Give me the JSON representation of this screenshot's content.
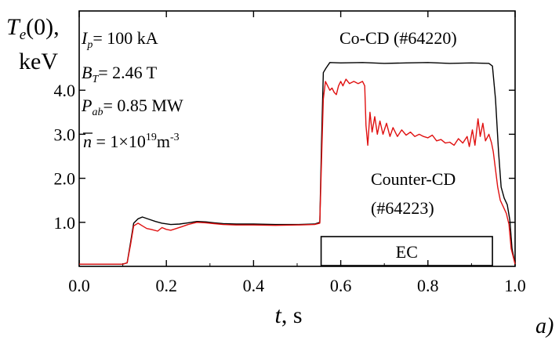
{
  "chart_data": {
    "type": "line",
    "panel_label": "a)",
    "ylabel": {
      "main": "T",
      "sub": "e",
      "after": "(0),",
      "unit": "keV"
    },
    "xlabel": {
      "var": "t",
      "unit": ", s"
    },
    "xlim": [
      0.0,
      1.0
    ],
    "ylim": [
      0.0,
      5.8
    ],
    "x_ticks": [
      {
        "v": 0.0,
        "label": "0.0"
      },
      {
        "v": 0.2,
        "label": "0.2"
      },
      {
        "v": 0.4,
        "label": "0.4"
      },
      {
        "v": 0.6,
        "label": "0.6"
      },
      {
        "v": 0.8,
        "label": "0.8"
      },
      {
        "v": 1.0,
        "label": "1.0"
      }
    ],
    "y_ticks": [
      {
        "v": 1.0,
        "label": "1.0"
      },
      {
        "v": 2.0,
        "label": "2.0"
      },
      {
        "v": 3.0,
        "label": "3.0"
      },
      {
        "v": 4.0,
        "label": "4.0"
      }
    ],
    "params": {
      "ip": {
        "sym": "I",
        "sub": "p",
        "val": "= 100 kA"
      },
      "bt": {
        "sym": "B",
        "sub": "T",
        "val": "= 2.46 T"
      },
      "pab": {
        "sym": "P",
        "sub": "ab",
        "val": "= 0.85 MW"
      },
      "n": {
        "sym": "n",
        "val": " = 1×10",
        "exp": "19",
        "unit": "m",
        "unit_exp": "-3"
      }
    },
    "ec_window": {
      "label": "EC",
      "start": 0.555,
      "end": 0.948
    },
    "series": [
      {
        "name": "Co-CD (#64220)",
        "color": "#000000",
        "points": [
          [
            0.0,
            0.05
          ],
          [
            0.1,
            0.05
          ],
          [
            0.11,
            0.08
          ],
          [
            0.118,
            0.55
          ],
          [
            0.125,
            0.98
          ],
          [
            0.135,
            1.08
          ],
          [
            0.145,
            1.12
          ],
          [
            0.16,
            1.07
          ],
          [
            0.175,
            1.02
          ],
          [
            0.19,
            0.98
          ],
          [
            0.21,
            0.95
          ],
          [
            0.23,
            0.96
          ],
          [
            0.25,
            0.99
          ],
          [
            0.27,
            1.02
          ],
          [
            0.29,
            1.01
          ],
          [
            0.31,
            0.99
          ],
          [
            0.33,
            0.97
          ],
          [
            0.36,
            0.96
          ],
          [
            0.4,
            0.96
          ],
          [
            0.45,
            0.95
          ],
          [
            0.5,
            0.95
          ],
          [
            0.54,
            0.96
          ],
          [
            0.552,
            1.0
          ],
          [
            0.556,
            2.8
          ],
          [
            0.56,
            4.4
          ],
          [
            0.566,
            4.5
          ],
          [
            0.575,
            4.63
          ],
          [
            0.6,
            4.62
          ],
          [
            0.65,
            4.63
          ],
          [
            0.7,
            4.61
          ],
          [
            0.75,
            4.62
          ],
          [
            0.8,
            4.63
          ],
          [
            0.85,
            4.61
          ],
          [
            0.9,
            4.62
          ],
          [
            0.94,
            4.61
          ],
          [
            0.948,
            4.55
          ],
          [
            0.955,
            3.8
          ],
          [
            0.962,
            2.6
          ],
          [
            0.968,
            1.8
          ],
          [
            0.975,
            1.55
          ],
          [
            0.982,
            1.4
          ],
          [
            0.988,
            1.05
          ],
          [
            0.993,
            0.4
          ],
          [
            1.0,
            0.05
          ]
        ]
      },
      {
        "name": "Counter-CD",
        "name2": "(#64223)",
        "color": "#e01010",
        "points": [
          [
            0.0,
            0.05
          ],
          [
            0.1,
            0.05
          ],
          [
            0.11,
            0.08
          ],
          [
            0.118,
            0.5
          ],
          [
            0.125,
            0.92
          ],
          [
            0.135,
            0.98
          ],
          [
            0.145,
            0.92
          ],
          [
            0.155,
            0.86
          ],
          [
            0.165,
            0.84
          ],
          [
            0.18,
            0.8
          ],
          [
            0.19,
            0.88
          ],
          [
            0.2,
            0.84
          ],
          [
            0.21,
            0.82
          ],
          [
            0.22,
            0.85
          ],
          [
            0.235,
            0.9
          ],
          [
            0.25,
            0.95
          ],
          [
            0.27,
            1.0
          ],
          [
            0.29,
            0.99
          ],
          [
            0.31,
            0.97
          ],
          [
            0.33,
            0.95
          ],
          [
            0.36,
            0.94
          ],
          [
            0.4,
            0.94
          ],
          [
            0.45,
            0.93
          ],
          [
            0.5,
            0.94
          ],
          [
            0.54,
            0.95
          ],
          [
            0.552,
            0.98
          ],
          [
            0.556,
            2.4
          ],
          [
            0.56,
            3.8
          ],
          [
            0.565,
            4.2
          ],
          [
            0.57,
            4.1
          ],
          [
            0.575,
            4.0
          ],
          [
            0.58,
            4.05
          ],
          [
            0.585,
            3.95
          ],
          [
            0.59,
            3.9
          ],
          [
            0.595,
            4.1
          ],
          [
            0.6,
            4.2
          ],
          [
            0.605,
            4.1
          ],
          [
            0.612,
            4.25
          ],
          [
            0.62,
            4.15
          ],
          [
            0.63,
            4.2
          ],
          [
            0.64,
            4.15
          ],
          [
            0.65,
            4.2
          ],
          [
            0.655,
            4.1
          ],
          [
            0.658,
            3.2
          ],
          [
            0.662,
            2.75
          ],
          [
            0.667,
            3.5
          ],
          [
            0.672,
            3.05
          ],
          [
            0.678,
            3.4
          ],
          [
            0.684,
            3.0
          ],
          [
            0.69,
            3.3
          ],
          [
            0.697,
            3.0
          ],
          [
            0.705,
            3.25
          ],
          [
            0.713,
            2.95
          ],
          [
            0.72,
            3.15
          ],
          [
            0.73,
            2.95
          ],
          [
            0.74,
            3.1
          ],
          [
            0.75,
            2.98
          ],
          [
            0.76,
            3.05
          ],
          [
            0.77,
            2.95
          ],
          [
            0.78,
            3.0
          ],
          [
            0.79,
            2.95
          ],
          [
            0.8,
            2.92
          ],
          [
            0.81,
            2.98
          ],
          [
            0.82,
            2.85
          ],
          [
            0.83,
            2.88
          ],
          [
            0.84,
            2.8
          ],
          [
            0.85,
            2.82
          ],
          [
            0.86,
            2.75
          ],
          [
            0.87,
            2.9
          ],
          [
            0.88,
            2.8
          ],
          [
            0.89,
            2.95
          ],
          [
            0.895,
            2.72
          ],
          [
            0.902,
            3.1
          ],
          [
            0.908,
            2.75
          ],
          [
            0.915,
            3.35
          ],
          [
            0.92,
            2.95
          ],
          [
            0.926,
            3.25
          ],
          [
            0.932,
            2.85
          ],
          [
            0.94,
            3.0
          ],
          [
            0.946,
            2.8
          ],
          [
            0.95,
            2.6
          ],
          [
            0.955,
            2.2
          ],
          [
            0.96,
            1.8
          ],
          [
            0.966,
            1.5
          ],
          [
            0.973,
            1.35
          ],
          [
            0.98,
            1.2
          ],
          [
            0.986,
            0.95
          ],
          [
            0.991,
            0.4
          ],
          [
            1.0,
            0.05
          ]
        ]
      }
    ]
  }
}
